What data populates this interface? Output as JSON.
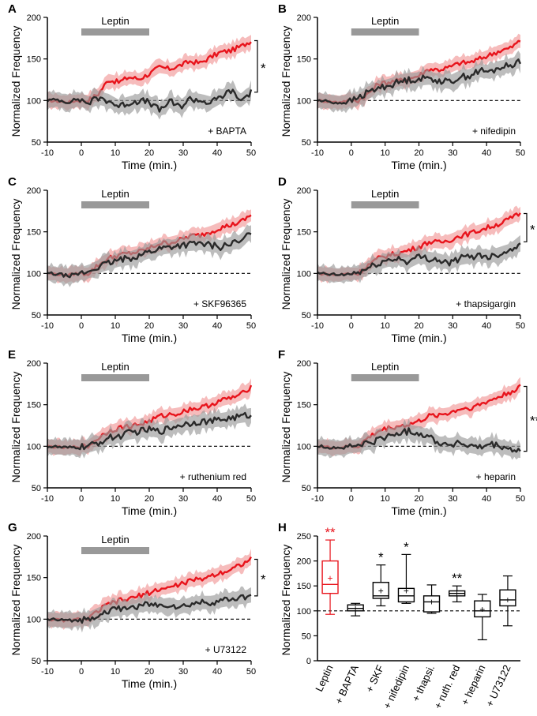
{
  "figure": {
    "colors": {
      "control": "#e8141c",
      "control_band": "#f2a0a0",
      "treated": "#2a2a2a",
      "treated_band": "#9a9a9a",
      "leptin_bar": "#999999"
    },
    "leptin_label": "Leptin",
    "x_label": "Time (min.)",
    "y_label": "Normalized Frequency"
  },
  "chart_data": [
    {
      "panel": "A",
      "type": "line",
      "xlabel": "Time (min.)",
      "ylabel": "Normalized Frequency",
      "xlim": [
        -10,
        50
      ],
      "ylim": [
        50,
        200
      ],
      "xticks": [
        "-10",
        "0",
        "10",
        "20",
        "30",
        "40",
        "50"
      ],
      "yticks": [
        "50",
        "100",
        "150",
        "200"
      ],
      "condition": "+ BAPTA",
      "leptin_window": [
        0,
        20
      ],
      "significance": "*",
      "series": [
        {
          "name": "Leptin",
          "x": [
            -10,
            -7,
            -4,
            -1,
            2,
            5,
            8,
            11,
            14,
            17,
            20,
            23,
            26,
            29,
            32,
            35,
            38,
            41,
            44,
            47,
            50
          ],
          "values": [
            100,
            99,
            98,
            100,
            100,
            108,
            125,
            122,
            128,
            126,
            132,
            140,
            138,
            142,
            147,
            145,
            152,
            158,
            160,
            165,
            172
          ]
        },
        {
          "name": "+ BAPTA",
          "x": [
            -10,
            -7,
            -4,
            -1,
            2,
            5,
            8,
            11,
            14,
            17,
            20,
            23,
            26,
            29,
            32,
            35,
            38,
            41,
            44,
            47,
            50
          ],
          "values": [
            100,
            101,
            98,
            102,
            97,
            103,
            100,
            93,
            97,
            100,
            98,
            88,
            99,
            92,
            102,
            100,
            97,
            104,
            112,
            100,
            110
          ]
        }
      ]
    },
    {
      "panel": "B",
      "type": "line",
      "xlabel": "Time (min.)",
      "ylabel": "Normalized Frequency",
      "xlim": [
        -10,
        50
      ],
      "ylim": [
        50,
        200
      ],
      "xticks": [
        "-10",
        "0",
        "10",
        "20",
        "30",
        "40",
        "50"
      ],
      "yticks": [
        "50",
        "100",
        "150",
        "200"
      ],
      "condition": "+ nifedipin",
      "leptin_window": [
        0,
        20
      ],
      "significance": "",
      "series": [
        {
          "name": "Leptin",
          "x": [
            -10,
            -7,
            -4,
            -1,
            2,
            5,
            8,
            11,
            14,
            17,
            20,
            23,
            26,
            29,
            32,
            35,
            38,
            41,
            44,
            47,
            50
          ],
          "values": [
            100,
            99,
            98,
            100,
            100,
            108,
            120,
            122,
            124,
            126,
            130,
            138,
            137,
            140,
            145,
            146,
            150,
            155,
            160,
            163,
            172
          ]
        },
        {
          "name": "+ nifedipin",
          "x": [
            -10,
            -7,
            -4,
            -1,
            2,
            5,
            8,
            11,
            14,
            17,
            20,
            23,
            26,
            29,
            32,
            35,
            38,
            41,
            44,
            47,
            50
          ],
          "values": [
            100,
            99,
            97,
            98,
            103,
            110,
            115,
            118,
            122,
            125,
            126,
            127,
            124,
            122,
            128,
            130,
            136,
            134,
            140,
            142,
            148
          ]
        }
      ]
    },
    {
      "panel": "C",
      "type": "line",
      "xlabel": "Time (min.)",
      "ylabel": "Normalized Frequency",
      "xlim": [
        -10,
        50
      ],
      "ylim": [
        50,
        200
      ],
      "xticks": [
        "-10",
        "0",
        "10",
        "20",
        "30",
        "40",
        "50"
      ],
      "yticks": [
        "50",
        "100",
        "150",
        "200"
      ],
      "condition": "+ SKF96365",
      "leptin_window": [
        0,
        20
      ],
      "significance": "",
      "series": [
        {
          "name": "Leptin",
          "x": [
            -10,
            -7,
            -4,
            -1,
            2,
            5,
            8,
            11,
            14,
            17,
            20,
            23,
            26,
            29,
            32,
            35,
            38,
            41,
            44,
            47,
            50
          ],
          "values": [
            100,
            99,
            98,
            100,
            100,
            110,
            118,
            122,
            124,
            126,
            130,
            136,
            137,
            140,
            145,
            146,
            150,
            155,
            158,
            162,
            170
          ]
        },
        {
          "name": "+ SKF96365",
          "x": [
            -10,
            -7,
            -4,
            -1,
            2,
            5,
            8,
            11,
            14,
            17,
            20,
            23,
            26,
            29,
            32,
            35,
            38,
            41,
            44,
            47,
            50
          ],
          "values": [
            100,
            99,
            97,
            99,
            102,
            108,
            112,
            116,
            118,
            122,
            126,
            130,
            132,
            134,
            135,
            136,
            134,
            132,
            136,
            138,
            150
          ]
        }
      ]
    },
    {
      "panel": "D",
      "type": "line",
      "xlabel": "Time (min.)",
      "ylabel": "Normalized Frequency",
      "xlim": [
        -10,
        50
      ],
      "ylim": [
        50,
        200
      ],
      "xticks": [
        "-10",
        "0",
        "10",
        "20",
        "30",
        "40",
        "50"
      ],
      "yticks": [
        "50",
        "100",
        "150",
        "200"
      ],
      "condition": "+ thapsigargin",
      "leptin_window": [
        0,
        20
      ],
      "significance": "*",
      "series": [
        {
          "name": "Leptin",
          "x": [
            -10,
            -7,
            -4,
            -1,
            2,
            5,
            8,
            11,
            14,
            17,
            20,
            23,
            26,
            29,
            32,
            35,
            38,
            41,
            44,
            47,
            50
          ],
          "values": [
            100,
            99,
            98,
            100,
            100,
            110,
            118,
            122,
            124,
            128,
            132,
            138,
            137,
            140,
            145,
            148,
            152,
            156,
            160,
            166,
            172
          ]
        },
        {
          "name": "+ thapsigargin",
          "x": [
            -10,
            -7,
            -4,
            -1,
            2,
            5,
            8,
            11,
            14,
            17,
            20,
            23,
            26,
            29,
            32,
            35,
            38,
            41,
            44,
            47,
            50
          ],
          "values": [
            100,
            99,
            98,
            99,
            101,
            106,
            112,
            116,
            118,
            114,
            120,
            118,
            116,
            112,
            118,
            120,
            122,
            120,
            124,
            128,
            138
          ]
        }
      ]
    },
    {
      "panel": "E",
      "type": "line",
      "xlabel": "Time (min.)",
      "ylabel": "Normalized Frequency",
      "xlim": [
        -10,
        50
      ],
      "ylim": [
        50,
        200
      ],
      "xticks": [
        "-10",
        "0",
        "10",
        "20",
        "30",
        "40",
        "50"
      ],
      "yticks": [
        "50",
        "100",
        "150",
        "200"
      ],
      "condition": "+ ruthenium red",
      "leptin_window": [
        0,
        20
      ],
      "significance": "",
      "series": [
        {
          "name": "Leptin",
          "x": [
            -10,
            -7,
            -4,
            -1,
            2,
            5,
            8,
            11,
            14,
            17,
            20,
            23,
            26,
            29,
            32,
            35,
            38,
            41,
            44,
            47,
            50
          ],
          "values": [
            100,
            99,
            98,
            100,
            100,
            110,
            118,
            122,
            124,
            126,
            130,
            136,
            138,
            140,
            145,
            146,
            150,
            155,
            158,
            162,
            172
          ]
        },
        {
          "name": "+ ruthenium red",
          "x": [
            -10,
            -7,
            -4,
            -1,
            2,
            5,
            8,
            11,
            14,
            17,
            20,
            23,
            26,
            29,
            32,
            35,
            38,
            41,
            44,
            47,
            50
          ],
          "values": [
            100,
            99,
            98,
            99,
            100,
            104,
            110,
            112,
            116,
            118,
            120,
            118,
            122,
            126,
            128,
            130,
            130,
            132,
            134,
            136,
            138
          ]
        }
      ]
    },
    {
      "panel": "F",
      "type": "line",
      "xlabel": "Time (min.)",
      "ylabel": "Normalized Frequency",
      "xlim": [
        -10,
        50
      ],
      "ylim": [
        50,
        200
      ],
      "xticks": [
        "-10",
        "0",
        "10",
        "20",
        "30",
        "40",
        "50"
      ],
      "yticks": [
        "50",
        "100",
        "150",
        "200"
      ],
      "condition": "+ heparin",
      "leptin_window": [
        0,
        20
      ],
      "significance": "**",
      "series": [
        {
          "name": "Leptin",
          "x": [
            -10,
            -7,
            -4,
            -1,
            2,
            5,
            8,
            11,
            14,
            17,
            20,
            23,
            26,
            29,
            32,
            35,
            38,
            41,
            44,
            47,
            50
          ],
          "values": [
            100,
            99,
            98,
            100,
            100,
            110,
            118,
            122,
            124,
            126,
            130,
            136,
            138,
            140,
            145,
            146,
            150,
            155,
            160,
            165,
            172
          ]
        },
        {
          "name": "+ heparin",
          "x": [
            -10,
            -7,
            -4,
            -1,
            2,
            5,
            8,
            11,
            14,
            17,
            20,
            23,
            26,
            29,
            32,
            35,
            38,
            41,
            44,
            47,
            50
          ],
          "values": [
            100,
            99,
            98,
            99,
            101,
            104,
            108,
            112,
            116,
            118,
            116,
            112,
            104,
            102,
            104,
            100,
            98,
            102,
            100,
            96,
            94
          ]
        }
      ]
    },
    {
      "panel": "G",
      "type": "line",
      "xlabel": "Time (min.)",
      "ylabel": "Normalized Frequency",
      "xlim": [
        -10,
        50
      ],
      "ylim": [
        50,
        200
      ],
      "xticks": [
        "-10",
        "0",
        "10",
        "20",
        "30",
        "40",
        "50"
      ],
      "yticks": [
        "50",
        "100",
        "150",
        "200"
      ],
      "condition": "+ U73122",
      "leptin_window": [
        0,
        20
      ],
      "significance": "*",
      "series": [
        {
          "name": "Leptin",
          "x": [
            -10,
            -7,
            -4,
            -1,
            2,
            5,
            8,
            11,
            14,
            17,
            20,
            23,
            26,
            29,
            32,
            35,
            38,
            41,
            44,
            47,
            50
          ],
          "values": [
            100,
            99,
            98,
            100,
            100,
            110,
            118,
            122,
            124,
            128,
            132,
            136,
            138,
            142,
            146,
            148,
            152,
            156,
            160,
            166,
            172
          ]
        },
        {
          "name": "+ U73122",
          "x": [
            -10,
            -7,
            -4,
            -1,
            2,
            5,
            8,
            11,
            14,
            17,
            20,
            23,
            26,
            29,
            32,
            35,
            38,
            41,
            44,
            47,
            50
          ],
          "values": [
            100,
            99,
            98,
            99,
            100,
            106,
            110,
            112,
            114,
            116,
            118,
            116,
            118,
            114,
            118,
            120,
            120,
            122,
            124,
            126,
            128
          ]
        }
      ]
    },
    {
      "panel": "H",
      "type": "box",
      "ylabel": "Normalized Frequency",
      "ylim": [
        0,
        250
      ],
      "yticks": [
        "0",
        "50",
        "100",
        "150",
        "200",
        "250"
      ],
      "reference_line": 100,
      "categories": [
        "Leptin",
        "+ BAPTA",
        "+ SKF",
        "+ nifedipin",
        "+ thapsi.",
        "+ ruth. red",
        "+ heparin",
        "+ U73122"
      ],
      "boxes": [
        {
          "min": 93,
          "q1": 135,
          "median": 153,
          "q3": 200,
          "max": 242,
          "mean": 165,
          "sig": "**",
          "color": "#e8141c"
        },
        {
          "min": 90,
          "q1": 100,
          "median": 105,
          "q3": 112,
          "max": 115,
          "mean": 105,
          "sig": "",
          "color": "#000000"
        },
        {
          "min": 110,
          "q1": 125,
          "median": 130,
          "q3": 157,
          "max": 192,
          "mean": 140,
          "sig": "*",
          "color": "#000000"
        },
        {
          "min": 115,
          "q1": 118,
          "median": 130,
          "q3": 145,
          "max": 213,
          "mean": 140,
          "sig": "*",
          "color": "#000000"
        },
        {
          "min": 95,
          "q1": 98,
          "median": 118,
          "q3": 130,
          "max": 152,
          "mean": 118,
          "sig": "",
          "color": "#000000"
        },
        {
          "min": 118,
          "q1": 130,
          "median": 135,
          "q3": 140,
          "max": 150,
          "mean": 135,
          "sig": "**",
          "color": "#000000"
        },
        {
          "min": 42,
          "q1": 88,
          "median": 100,
          "q3": 120,
          "max": 133,
          "mean": 103,
          "sig": "",
          "color": "#000000"
        },
        {
          "min": 70,
          "q1": 110,
          "median": 122,
          "q3": 142,
          "max": 170,
          "mean": 122,
          "sig": "",
          "color": "#000000"
        }
      ]
    }
  ]
}
